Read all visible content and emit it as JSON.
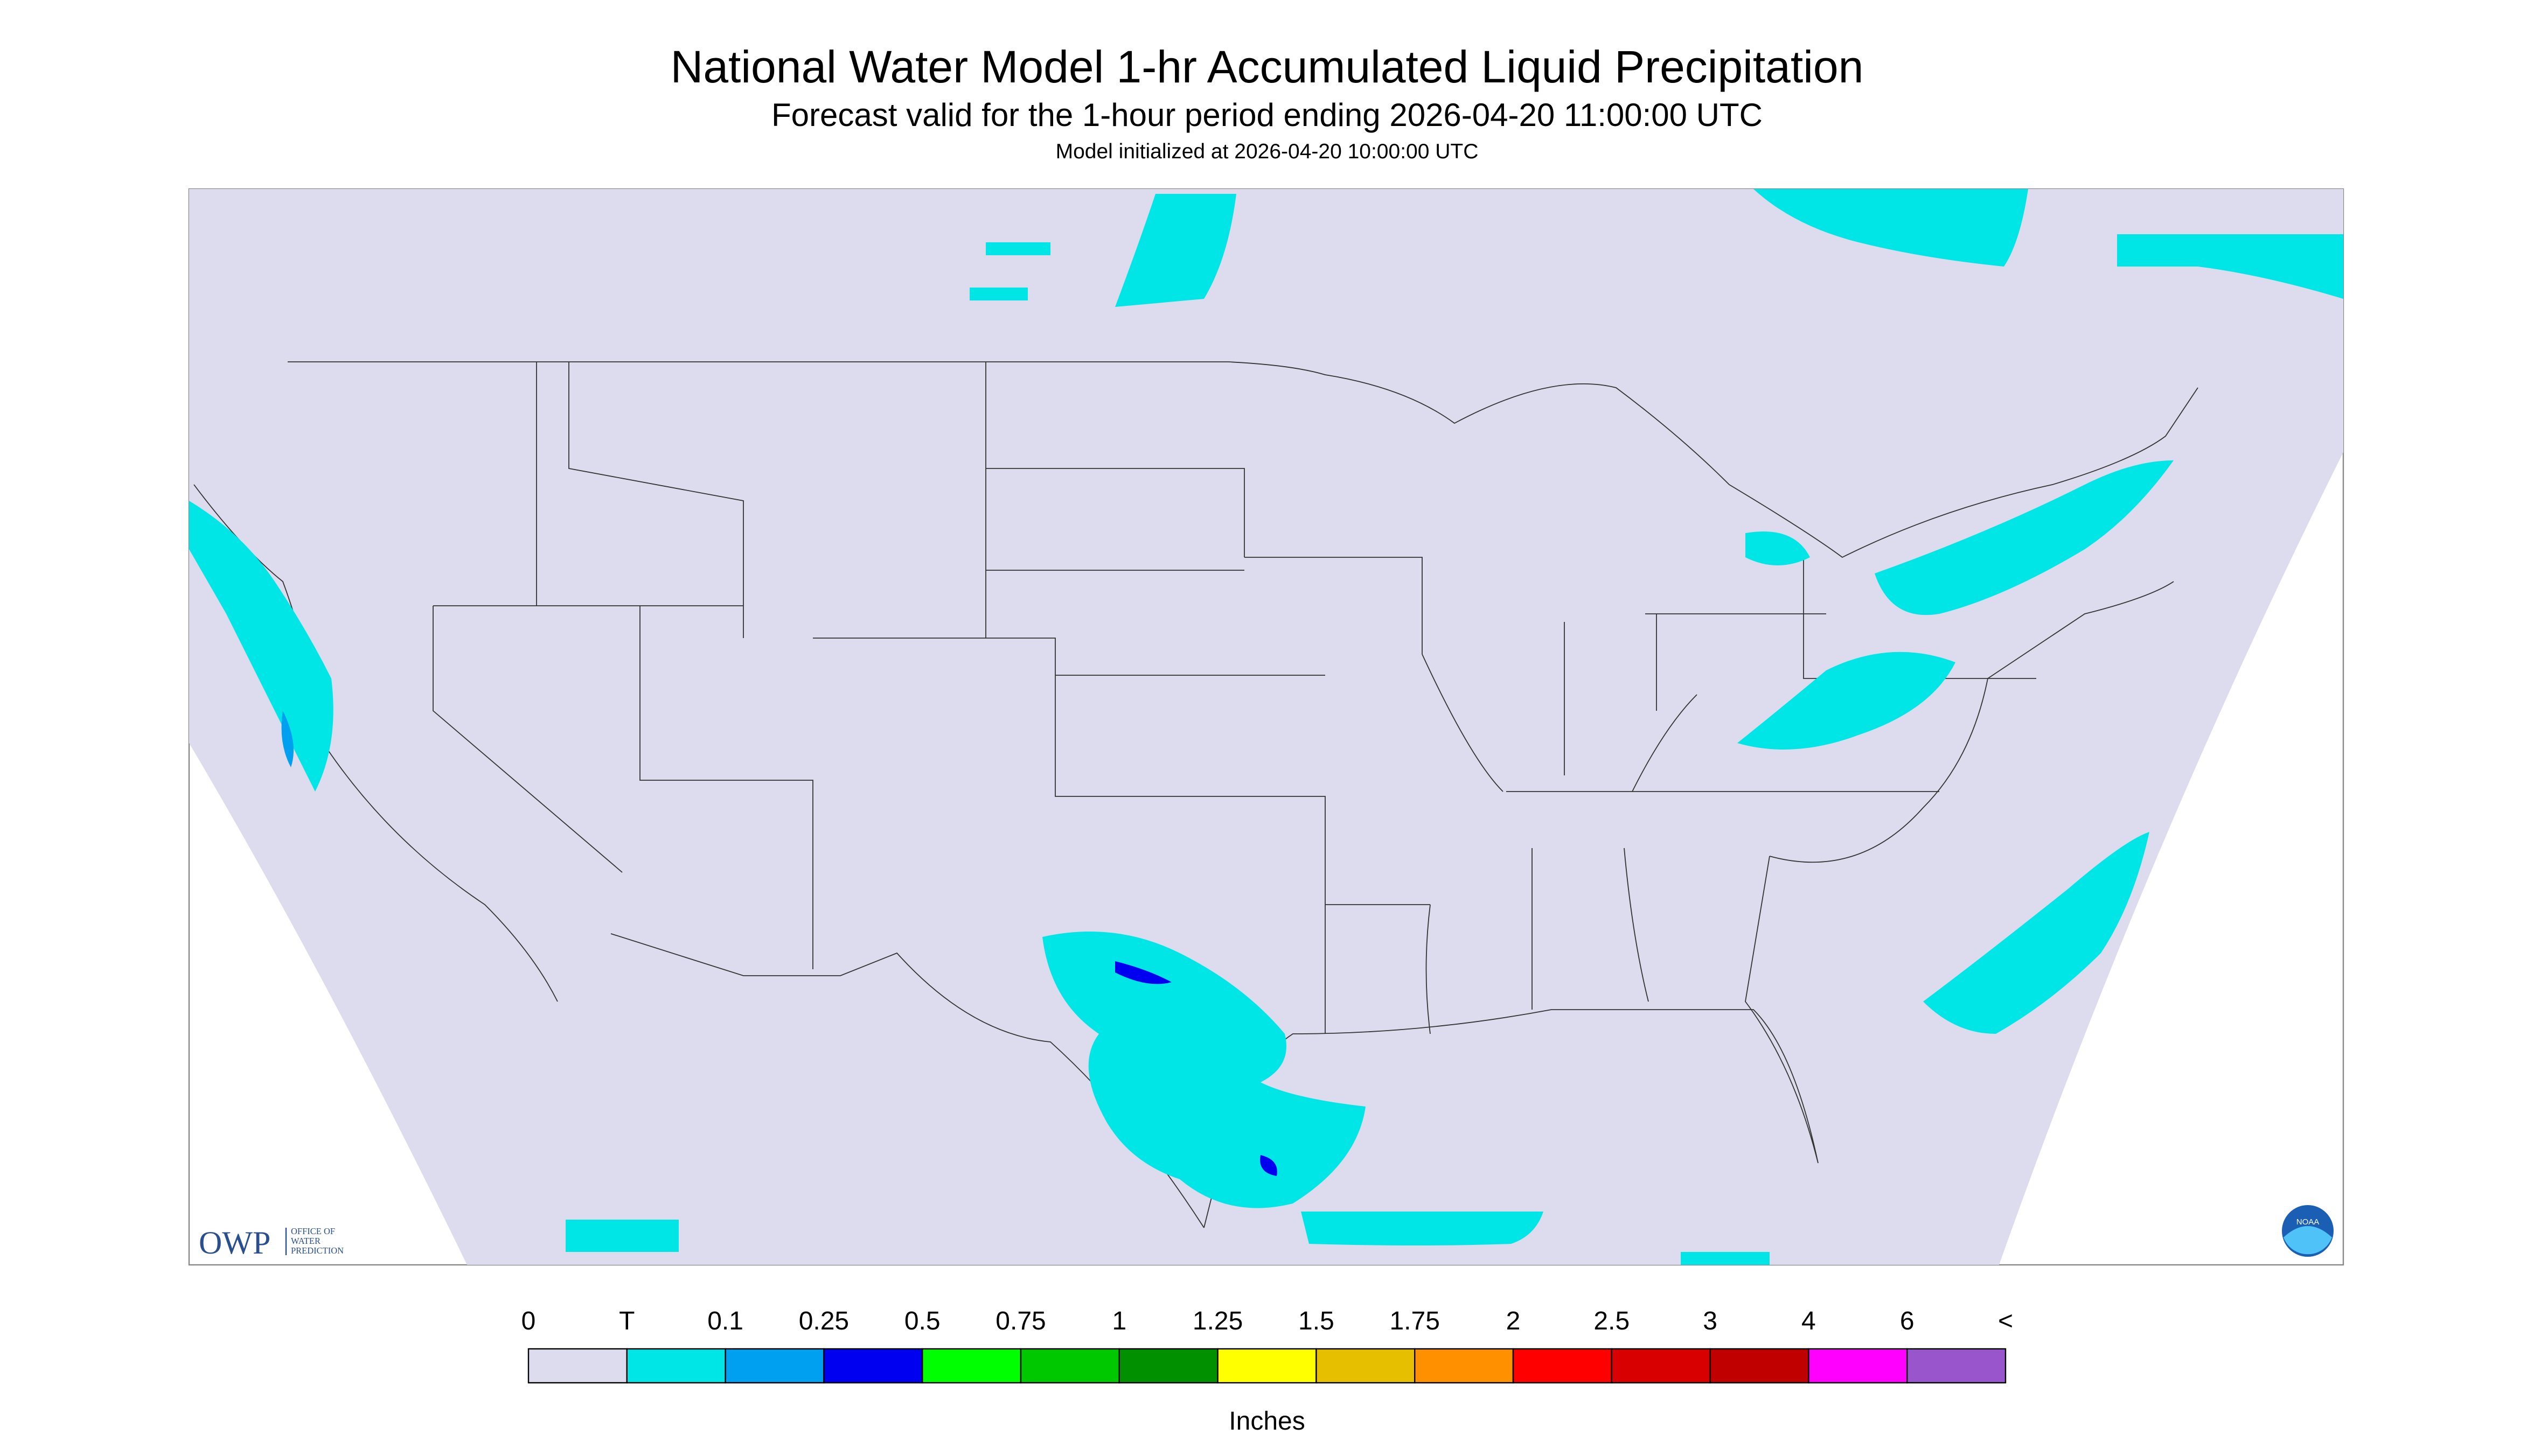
{
  "header": {
    "title": "National Water Model 1-hr Accumulated Liquid Precipitation",
    "subtitle": "Forecast valid for the 1-hour period ending 2026-04-20 11:00:00 UTC",
    "init": "Model initialized at 2026-04-20 10:00:00 UTC"
  },
  "legend": {
    "labels": [
      "0",
      "T",
      "0.1",
      "0.25",
      "0.5",
      "0.75",
      "1",
      "1.25",
      "1.5",
      "1.75",
      "2",
      "2.5",
      "3",
      "4",
      "6",
      "<"
    ],
    "colors": [
      "#dcdcee",
      "#00e5e5",
      "#00a0f0",
      "#0000f0",
      "#00ff00",
      "#00c800",
      "#009000",
      "#ffff00",
      "#e6c000",
      "#ff9000",
      "#ff0000",
      "#d80000",
      "#c00000",
      "#ff00ff",
      "#9955cc"
    ],
    "unit": "Inches"
  },
  "logos": {
    "owp": "OWP",
    "owp_full": [
      "OFFICE OF",
      "WATER",
      "PREDICTION"
    ],
    "noaa": "NOAA"
  }
}
